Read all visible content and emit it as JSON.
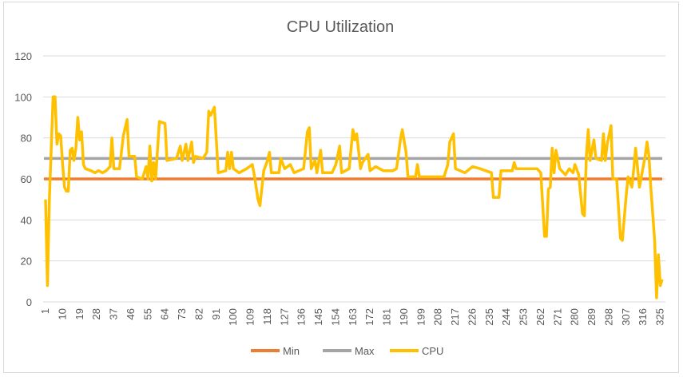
{
  "chart_data": {
    "type": "line",
    "title": "CPU Utilization",
    "xlabel": "",
    "ylabel": "",
    "ylim": [
      0,
      120
    ],
    "yticks": [
      0,
      20,
      40,
      60,
      80,
      100,
      120
    ],
    "xlim": [
      1,
      326
    ],
    "xticks": [
      1,
      10,
      19,
      28,
      37,
      46,
      55,
      64,
      73,
      82,
      91,
      100,
      109,
      118,
      127,
      136,
      145,
      154,
      163,
      172,
      181,
      190,
      199,
      208,
      217,
      226,
      235,
      244,
      253,
      262,
      271,
      280,
      289,
      298,
      307,
      316,
      325
    ],
    "grid": true,
    "legend_position": "bottom",
    "series": [
      {
        "name": "Min",
        "color": "#ED7D31",
        "constant": 60
      },
      {
        "name": "Max",
        "color": "#A5A5A5",
        "constant": 70
      },
      {
        "name": "CPU",
        "color": "#FFC000",
        "points": [
          [
            1,
            50
          ],
          [
            2,
            8
          ],
          [
            3,
            50
          ],
          [
            5,
            100
          ],
          [
            6,
            100
          ],
          [
            7,
            77
          ],
          [
            8,
            82
          ],
          [
            9,
            81
          ],
          [
            10,
            67
          ],
          [
            11,
            56
          ],
          [
            12,
            54
          ],
          [
            13,
            54
          ],
          [
            14,
            74
          ],
          [
            15,
            75
          ],
          [
            16,
            69
          ],
          [
            17,
            75
          ],
          [
            18,
            90
          ],
          [
            19,
            79
          ],
          [
            20,
            83
          ],
          [
            21,
            67
          ],
          [
            22,
            65
          ],
          [
            25,
            64
          ],
          [
            27,
            63
          ],
          [
            29,
            64
          ],
          [
            31,
            63
          ],
          [
            33,
            64
          ],
          [
            35,
            66
          ],
          [
            36,
            80
          ],
          [
            37,
            65
          ],
          [
            40,
            65
          ],
          [
            42,
            81
          ],
          [
            44,
            89
          ],
          [
            45,
            71
          ],
          [
            48,
            71
          ],
          [
            49,
            61
          ],
          [
            52,
            60
          ],
          [
            54,
            66
          ],
          [
            55,
            60
          ],
          [
            56,
            76
          ],
          [
            57,
            59
          ],
          [
            58,
            68
          ],
          [
            59,
            60
          ],
          [
            61,
            88
          ],
          [
            64,
            87
          ],
          [
            65,
            69
          ],
          [
            70,
            70
          ],
          [
            72,
            76
          ],
          [
            73,
            69
          ],
          [
            75,
            77
          ],
          [
            76,
            69
          ],
          [
            78,
            78
          ],
          [
            79,
            68
          ],
          [
            80,
            71
          ],
          [
            84,
            70
          ],
          [
            86,
            73
          ],
          [
            87,
            93
          ],
          [
            88,
            91
          ],
          [
            90,
            95
          ],
          [
            92,
            63
          ],
          [
            96,
            64
          ],
          [
            97,
            73
          ],
          [
            98,
            65
          ],
          [
            99,
            73
          ],
          [
            100,
            65
          ],
          [
            103,
            63
          ],
          [
            107,
            65
          ],
          [
            110,
            67
          ],
          [
            111,
            62
          ],
          [
            113,
            50
          ],
          [
            114,
            47
          ],
          [
            116,
            64
          ],
          [
            118,
            69
          ],
          [
            119,
            73
          ],
          [
            120,
            63
          ],
          [
            124,
            63
          ],
          [
            125,
            70
          ],
          [
            127,
            65
          ],
          [
            130,
            67
          ],
          [
            132,
            63
          ],
          [
            137,
            65
          ],
          [
            139,
            83
          ],
          [
            140,
            85
          ],
          [
            141,
            65
          ],
          [
            143,
            69
          ],
          [
            144,
            63
          ],
          [
            146,
            74
          ],
          [
            147,
            63
          ],
          [
            152,
            63
          ],
          [
            154,
            67
          ],
          [
            156,
            76
          ],
          [
            157,
            63
          ],
          [
            161,
            65
          ],
          [
            163,
            84
          ],
          [
            164,
            79
          ],
          [
            165,
            82
          ],
          [
            167,
            65
          ],
          [
            168,
            68
          ],
          [
            171,
            72
          ],
          [
            172,
            64
          ],
          [
            175,
            66
          ],
          [
            179,
            64
          ],
          [
            184,
            64
          ],
          [
            186,
            65
          ],
          [
            188,
            79
          ],
          [
            189,
            84
          ],
          [
            191,
            73
          ],
          [
            192,
            61
          ],
          [
            196,
            61
          ],
          [
            197,
            67
          ],
          [
            198,
            61
          ],
          [
            207,
            61
          ],
          [
            211,
            61
          ],
          [
            213,
            67
          ],
          [
            214,
            78
          ],
          [
            216,
            82
          ],
          [
            217,
            65
          ],
          [
            222,
            63
          ],
          [
            226,
            66
          ],
          [
            230,
            65
          ],
          [
            236,
            63
          ],
          [
            237,
            51
          ],
          [
            240,
            51
          ],
          [
            241,
            64
          ],
          [
            247,
            64
          ],
          [
            248,
            68
          ],
          [
            249,
            65
          ],
          [
            255,
            65
          ],
          [
            260,
            65
          ],
          [
            262,
            63
          ],
          [
            264,
            32
          ],
          [
            265,
            32
          ],
          [
            266,
            55
          ],
          [
            267,
            56
          ],
          [
            268,
            75
          ],
          [
            269,
            63
          ],
          [
            270,
            74
          ],
          [
            272,
            65
          ],
          [
            275,
            62
          ],
          [
            277,
            65
          ],
          [
            279,
            63
          ],
          [
            280,
            67
          ],
          [
            282,
            62
          ],
          [
            284,
            43
          ],
          [
            285,
            42
          ],
          [
            286,
            71
          ],
          [
            287,
            84
          ],
          [
            288,
            69
          ],
          [
            290,
            79
          ],
          [
            291,
            70
          ],
          [
            294,
            69
          ],
          [
            295,
            82
          ],
          [
            296,
            69
          ],
          [
            297,
            77
          ],
          [
            299,
            86
          ],
          [
            300,
            60
          ],
          [
            302,
            60
          ],
          [
            304,
            31
          ],
          [
            305,
            30
          ],
          [
            307,
            52
          ],
          [
            308,
            61
          ],
          [
            310,
            56
          ],
          [
            311,
            65
          ],
          [
            312,
            75
          ],
          [
            314,
            56
          ],
          [
            315,
            61
          ],
          [
            317,
            71
          ],
          [
            318,
            78
          ],
          [
            319,
            71
          ],
          [
            320,
            56
          ],
          [
            322,
            30
          ],
          [
            323,
            2
          ],
          [
            324,
            23
          ],
          [
            325,
            8
          ],
          [
            326,
            11
          ]
        ]
      }
    ]
  }
}
